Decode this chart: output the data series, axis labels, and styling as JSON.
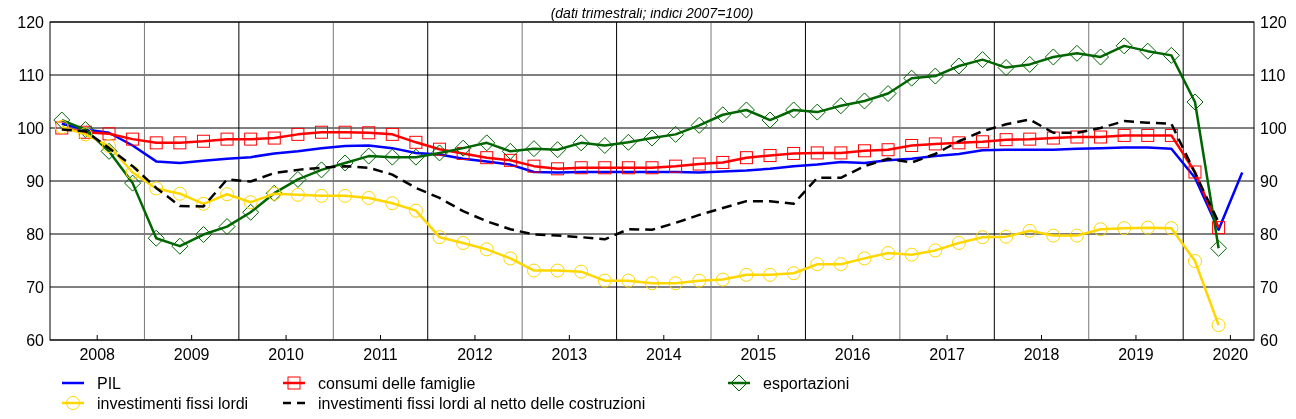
{
  "chart_data": {
    "type": "line",
    "subtitle": "(dati trimestrali; indici 2007=100)",
    "x": [
      2008.125,
      2008.375,
      2008.625,
      2008.875,
      2009.125,
      2009.375,
      2009.625,
      2009.875,
      2010.125,
      2010.375,
      2010.625,
      2010.875,
      2011.125,
      2011.375,
      2011.625,
      2011.875,
      2012.125,
      2012.375,
      2012.625,
      2012.875,
      2013.125,
      2013.375,
      2013.625,
      2013.875,
      2014.125,
      2014.375,
      2014.625,
      2014.875,
      2015.125,
      2015.375,
      2015.625,
      2015.875,
      2016.125,
      2016.375,
      2016.625,
      2016.875,
      2017.125,
      2017.375,
      2017.625,
      2017.875,
      2018.125,
      2018.375,
      2018.625,
      2018.875,
      2019.125,
      2019.375,
      2019.625,
      2019.875,
      2020.125,
      2020.375,
      2020.625
    ],
    "xlim": [
      2008,
      2020.75
    ],
    "xticks": [
      {
        "value": 2008.5,
        "label": "2008"
      },
      {
        "value": 2009,
        "label": null
      },
      {
        "value": 2009.5,
        "label": "2009"
      },
      {
        "value": 2010,
        "label": null
      },
      {
        "value": 2010.5,
        "label": "2010"
      },
      {
        "value": 2011,
        "label": null
      },
      {
        "value": 2011.5,
        "label": "2011"
      },
      {
        "value": 2012,
        "label": null
      },
      {
        "value": 2012.5,
        "label": "2012"
      },
      {
        "value": 2013,
        "label": null
      },
      {
        "value": 2013.5,
        "label": "2013"
      },
      {
        "value": 2014,
        "label": null
      },
      {
        "value": 2014.5,
        "label": "2014"
      },
      {
        "value": 2015,
        "label": null
      },
      {
        "value": 2015.5,
        "label": "2015"
      },
      {
        "value": 2016,
        "label": null
      },
      {
        "value": 2016.5,
        "label": "2016"
      },
      {
        "value": 2017,
        "label": null
      },
      {
        "value": 2017.5,
        "label": "2017"
      },
      {
        "value": 2018,
        "label": null
      },
      {
        "value": 2018.5,
        "label": "2018"
      },
      {
        "value": 2019,
        "label": null
      },
      {
        "value": 2019.5,
        "label": "2019"
      },
      {
        "value": 2020,
        "label": null
      },
      {
        "value": 2020.5,
        "label": "2020"
      }
    ],
    "ylim": [
      60,
      120
    ],
    "yticks": [
      60,
      70,
      80,
      90,
      100,
      110,
      120
    ],
    "y2lim": [
      60,
      120
    ],
    "y2ticks": [
      60,
      70,
      80,
      90,
      100,
      110,
      120
    ],
    "grid": true,
    "legend": "bottom",
    "series": [
      {
        "name": "PIL",
        "color": "#0000ff",
        "marker": "none",
        "line_style": "solid",
        "values": [
          100.8,
          99.7,
          99.1,
          96.7,
          93.7,
          93.4,
          93.8,
          94.2,
          94.5,
          95.2,
          95.6,
          96.2,
          96.6,
          96.7,
          96.2,
          95.3,
          95.0,
          94.2,
          93.7,
          93.1,
          91.7,
          91.6,
          91.7,
          91.7,
          91.7,
          91.7,
          91.7,
          91.6,
          91.8,
          92.0,
          92.3,
          92.8,
          93.1,
          93.6,
          93.4,
          93.9,
          94.2,
          94.7,
          95.1,
          95.8,
          95.9,
          95.9,
          95.9,
          96.1,
          96.2,
          96.3,
          96.3,
          96.1,
          90.6,
          80.8,
          91.6
        ]
      },
      {
        "name": "consumi delle famiglie",
        "color": "#ff0000",
        "marker": "square",
        "line_style": "solid",
        "values": [
          100.0,
          99.2,
          98.9,
          97.9,
          97.2,
          97.2,
          97.5,
          97.9,
          97.9,
          98.1,
          98.8,
          99.2,
          99.2,
          99.1,
          98.8,
          97.3,
          96.0,
          95.2,
          94.4,
          93.9,
          92.8,
          92.3,
          92.5,
          92.5,
          92.5,
          92.5,
          92.8,
          93.2,
          93.5,
          94.4,
          94.8,
          95.2,
          95.3,
          95.3,
          95.7,
          95.9,
          96.7,
          97.0,
          97.2,
          97.4,
          97.8,
          97.9,
          98.1,
          98.3,
          98.3,
          98.6,
          98.6,
          98.6,
          91.7,
          81.2,
          null
        ]
      },
      {
        "name": "esportazioni",
        "color": "#006600",
        "marker": "diamond",
        "line_style": "solid",
        "values": [
          101.5,
          99.7,
          95.6,
          89.6,
          79.2,
          77.7,
          79.9,
          81.4,
          84.1,
          87.7,
          90.3,
          92.1,
          93.4,
          94.7,
          94.5,
          94.5,
          95.3,
          96.2,
          97.2,
          95.6,
          96.1,
          95.9,
          97.2,
          96.7,
          97.3,
          98.1,
          98.8,
          100.5,
          102.5,
          103.4,
          101.5,
          103.4,
          103.0,
          104.2,
          105.1,
          106.5,
          109.4,
          109.8,
          111.7,
          112.9,
          111.4,
          112.0,
          113.4,
          114.1,
          113.4,
          115.5,
          114.5,
          113.7,
          104.9,
          77.3,
          null
        ]
      },
      {
        "name": "investimenti fissi lordi",
        "color": "#ffd700",
        "marker": "circle",
        "line_style": "solid",
        "values": [
          100.2,
          98.8,
          96.6,
          91.6,
          88.6,
          87.6,
          85.7,
          87.5,
          86.0,
          87.6,
          87.4,
          87.2,
          87.2,
          86.8,
          85.8,
          84.4,
          79.4,
          78.3,
          77.1,
          75.4,
          73.1,
          73.1,
          72.9,
          71.2,
          71.2,
          70.7,
          70.7,
          71.2,
          71.4,
          72.3,
          72.3,
          72.6,
          74.3,
          74.3,
          75.4,
          76.4,
          76.1,
          76.9,
          78.3,
          79.4,
          79.5,
          80.6,
          79.7,
          79.7,
          80.9,
          81.1,
          81.2,
          81.1,
          74.9,
          62.8,
          null
        ]
      },
      {
        "name": "investimenti fissi lordi al netto delle costruzioni",
        "color": "#000000",
        "marker": "none",
        "line_style": "dashed",
        "values": [
          99.7,
          99.4,
          96.2,
          92.8,
          88.7,
          85.3,
          85.2,
          90.3,
          89.9,
          91.5,
          92.1,
          92.5,
          92.8,
          92.5,
          91.2,
          88.7,
          86.8,
          84.3,
          82.4,
          80.9,
          79.9,
          79.7,
          79.4,
          79.0,
          80.9,
          80.8,
          82.1,
          83.6,
          84.9,
          86.2,
          86.2,
          85.7,
          90.6,
          90.6,
          92.8,
          94.2,
          93.5,
          95.1,
          97.5,
          99.4,
          100.7,
          101.6,
          99.1,
          99.1,
          100.0,
          101.3,
          101.0,
          100.8,
          91.5,
          82.2,
          null
        ]
      }
    ]
  }
}
